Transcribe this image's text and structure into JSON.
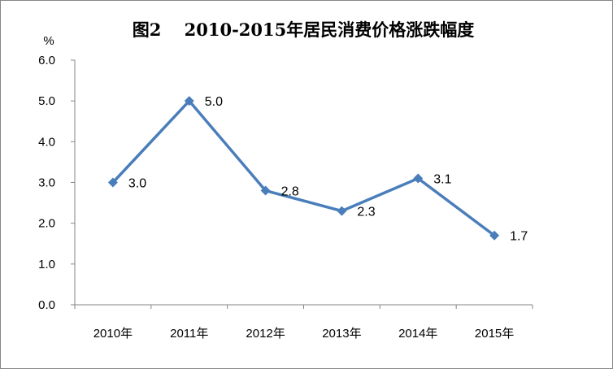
{
  "chart_data": {
    "type": "line",
    "title": "图2　 2010-2015年居民消费价格涨跌幅度",
    "ylabel": "%",
    "xlabel": "",
    "categories": [
      "2010年",
      "2011年",
      "2012年",
      "2013年",
      "2014年",
      "2015年"
    ],
    "series": [
      {
        "values": [
          3.0,
          5.0,
          2.8,
          2.3,
          3.1,
          1.7
        ]
      }
    ],
    "data_labels": [
      "3.0",
      "5.0",
      "2.8",
      "2.3",
      "3.1",
      "1.7"
    ],
    "y_ticks": [
      "0.0",
      "1.0",
      "2.0",
      "3.0",
      "4.0",
      "5.0",
      "6.0"
    ],
    "ylim": [
      0,
      6
    ],
    "grid": false,
    "legend": "none",
    "colors": {
      "line": "#4a7ebb",
      "marker": "#4a7ebb",
      "axis": "#868686"
    }
  }
}
